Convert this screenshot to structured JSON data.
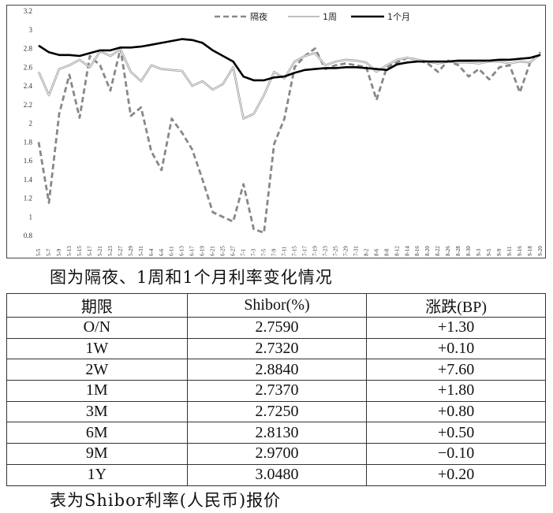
{
  "chart_data": {
    "type": "line",
    "ylim": [
      0.8,
      3.2
    ],
    "yticks": [
      "3.2",
      "3",
      "2.8",
      "2.6",
      "2.4",
      "2.2",
      "2",
      "1.8",
      "1.6",
      "1.4",
      "1.2",
      "1",
      "0.8"
    ],
    "grid": false,
    "legend_placement": "top-center",
    "colors": {
      "overnight": "#888888",
      "week": "#aaaaaa",
      "month": "#000000"
    },
    "x": [
      "5-5",
      "5-7",
      "5-9",
      "5-13",
      "5-15",
      "5-17",
      "5-21",
      "5-23",
      "5-27",
      "5-29",
      "5-31",
      "6-4",
      "6-6",
      "6-11",
      "6-13",
      "6-17",
      "6-19",
      "6-21",
      "6-25",
      "6-27",
      "7-1",
      "7-3",
      "7-5",
      "7-9",
      "7-11",
      "7-15",
      "7-17",
      "7-19",
      "7-23",
      "7-25",
      "7-29",
      "7-31",
      "8-2",
      "8-6",
      "8-8",
      "8-12",
      "8-14",
      "8-16",
      "8-20",
      "8-22",
      "8-26",
      "8-28",
      "8-30",
      "9-3",
      "9-5",
      "9-9",
      "9-11",
      "9-16",
      "9-18",
      "9-20"
    ],
    "series": [
      {
        "name": "隔夜",
        "style": "dashed",
        "values": [
          1.8,
          1.15,
          2.1,
          2.52,
          2.06,
          2.72,
          2.62,
          2.35,
          2.8,
          2.08,
          2.17,
          1.7,
          1.5,
          2.05,
          1.9,
          1.72,
          1.4,
          1.05,
          1.0,
          0.95,
          1.35,
          0.87,
          0.83,
          1.78,
          2.05,
          2.6,
          2.72,
          2.8,
          2.58,
          2.62,
          2.64,
          2.62,
          2.6,
          2.25,
          2.6,
          2.65,
          2.7,
          2.68,
          2.64,
          2.55,
          2.67,
          2.62,
          2.5,
          2.58,
          2.47,
          2.6,
          2.62,
          2.33,
          2.65,
          2.76
        ]
      },
      {
        "name": "1周",
        "style": "thin",
        "values": [
          2.55,
          2.3,
          2.58,
          2.62,
          2.68,
          2.6,
          2.77,
          2.72,
          2.79,
          2.55,
          2.45,
          2.62,
          2.58,
          2.57,
          2.56,
          2.4,
          2.45,
          2.36,
          2.42,
          2.6,
          2.05,
          2.1,
          2.3,
          2.55,
          2.48,
          2.66,
          2.72,
          2.75,
          2.62,
          2.66,
          2.68,
          2.67,
          2.65,
          2.55,
          2.62,
          2.68,
          2.7,
          2.68,
          2.66,
          2.64,
          2.66,
          2.65,
          2.65,
          2.64,
          2.66,
          2.66,
          2.64,
          2.66,
          2.65,
          2.74
        ]
      },
      {
        "name": "1个月",
        "style": "thick",
        "values": [
          2.83,
          2.76,
          2.73,
          2.73,
          2.72,
          2.75,
          2.78,
          2.78,
          2.81,
          2.81,
          2.82,
          2.84,
          2.86,
          2.88,
          2.9,
          2.89,
          2.86,
          2.78,
          2.72,
          2.66,
          2.5,
          2.46,
          2.46,
          2.49,
          2.5,
          2.54,
          2.57,
          2.58,
          2.59,
          2.59,
          2.6,
          2.6,
          2.59,
          2.58,
          2.57,
          2.63,
          2.65,
          2.66,
          2.66,
          2.66,
          2.66,
          2.67,
          2.67,
          2.67,
          2.67,
          2.68,
          2.68,
          2.69,
          2.7,
          2.73
        ]
      }
    ]
  },
  "chart_caption": "图为隔夜、1周和1个月利率变化情况",
  "table": {
    "headers": [
      "期限",
      "Shibor(%)",
      "涨跌(BP)"
    ],
    "rows": [
      [
        "O/N",
        "2.7590",
        "+1.30"
      ],
      [
        "1W",
        "2.7320",
        "+0.10"
      ],
      [
        "2W",
        "2.8840",
        "+7.60"
      ],
      [
        "1M",
        "2.7370",
        "+1.80"
      ],
      [
        "3M",
        "2.7250",
        "+0.80"
      ],
      [
        "6M",
        "2.8130",
        "+0.50"
      ],
      [
        "9M",
        "2.9700",
        "−0.10"
      ],
      [
        "1Y",
        "3.0480",
        "+0.20"
      ]
    ]
  },
  "table_caption": "表为Shibor利率(人民币)报价"
}
